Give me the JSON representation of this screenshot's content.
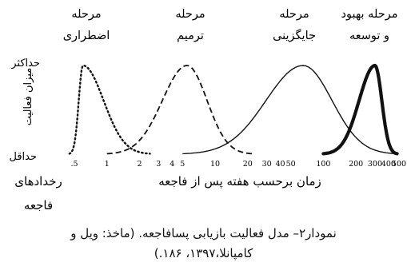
{
  "chart_data": {
    "type": "line",
    "x_scale": "log",
    "xlabel": "زمان برحسب هفته پس از فاجعه",
    "x_origin_label": "رخدادهای فاجعه",
    "ylabel": "میزان فعالیت",
    "y_max_label": "حداکثر",
    "y_min_label": "حداقل",
    "x_ticks": [
      ".5",
      "1",
      "2",
      "3",
      "4",
      "5",
      "10",
      "20",
      "30",
      "40",
      "50",
      "100",
      "200",
      "300",
      "400",
      "500"
    ],
    "series": [
      {
        "name": "مرحله\nاضطراری",
        "style": "dotted",
        "peak_week": 0.6,
        "start_week": 0.45,
        "end_week": 2.5
      },
      {
        "name": "مرحله\nترمیم",
        "style": "dashed",
        "peak_week": 5.5,
        "start_week": 1,
        "end_week": 22
      },
      {
        "name": "مرحله\nجایگزینی",
        "style": "solid",
        "peak_week": 65,
        "start_week": 5,
        "end_week": 480
      },
      {
        "name": "مرحله بهبود\nو توسعه",
        "style": "bold",
        "peak_week": 300,
        "start_week": 100,
        "end_week": 480
      }
    ]
  },
  "caption": {
    "line1": "نمودار۲– مدل فعالیت بازیابی پسافاجعه. (ماخذ: ویل و",
    "line2": "کامپانلا،۱۳۹۷، ۱۸۶.)"
  }
}
